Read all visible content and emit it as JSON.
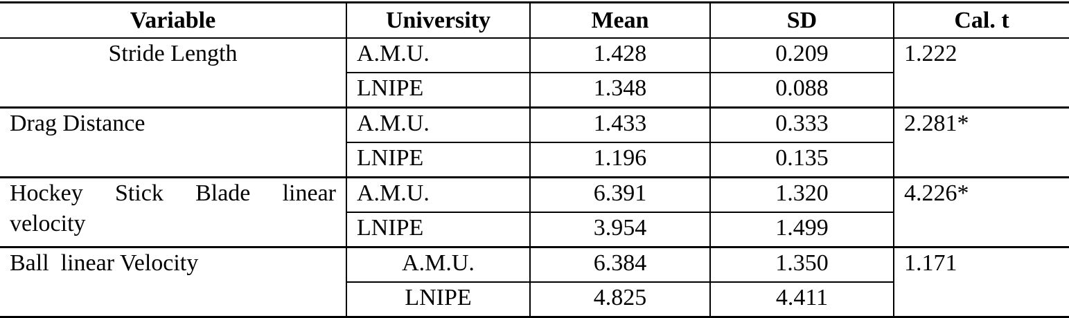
{
  "table": {
    "header": [
      "Variable",
      "University",
      "Mean",
      "SD",
      "Cal. t"
    ],
    "groups": [
      {
        "variable": "Stride Length",
        "cal_t": "1.222",
        "rows": [
          {
            "university": "A.M.U.",
            "mean": "1.428",
            "sd": "0.209"
          },
          {
            "university": "LNIPE",
            "mean": "1.348",
            "sd": "0.088"
          }
        ]
      },
      {
        "variable": "Drag Distance",
        "cal_t": "2.281*",
        "rows": [
          {
            "university": "A.M.U.",
            "mean": "1.433",
            "sd": "0.333"
          },
          {
            "university": "LNIPE",
            "mean": "1.196",
            "sd": "0.135"
          }
        ]
      },
      {
        "variable": "Hockey Stick Blade linear velocity",
        "cal_t": "4.226*",
        "rows": [
          {
            "university": "A.M.U.",
            "mean": "6.391",
            "sd": "1.320"
          },
          {
            "university": "LNIPE",
            "mean": "3.954",
            "sd": "1.499"
          }
        ]
      },
      {
        "variable": "Ball  linear Velocity",
        "cal_t": "1.171",
        "rows": [
          {
            "university": "A.M.U.",
            "mean": "6.384",
            "sd": "1.350"
          },
          {
            "university": "LNIPE",
            "mean": "4.825",
            "sd": "4.411"
          }
        ]
      }
    ]
  }
}
